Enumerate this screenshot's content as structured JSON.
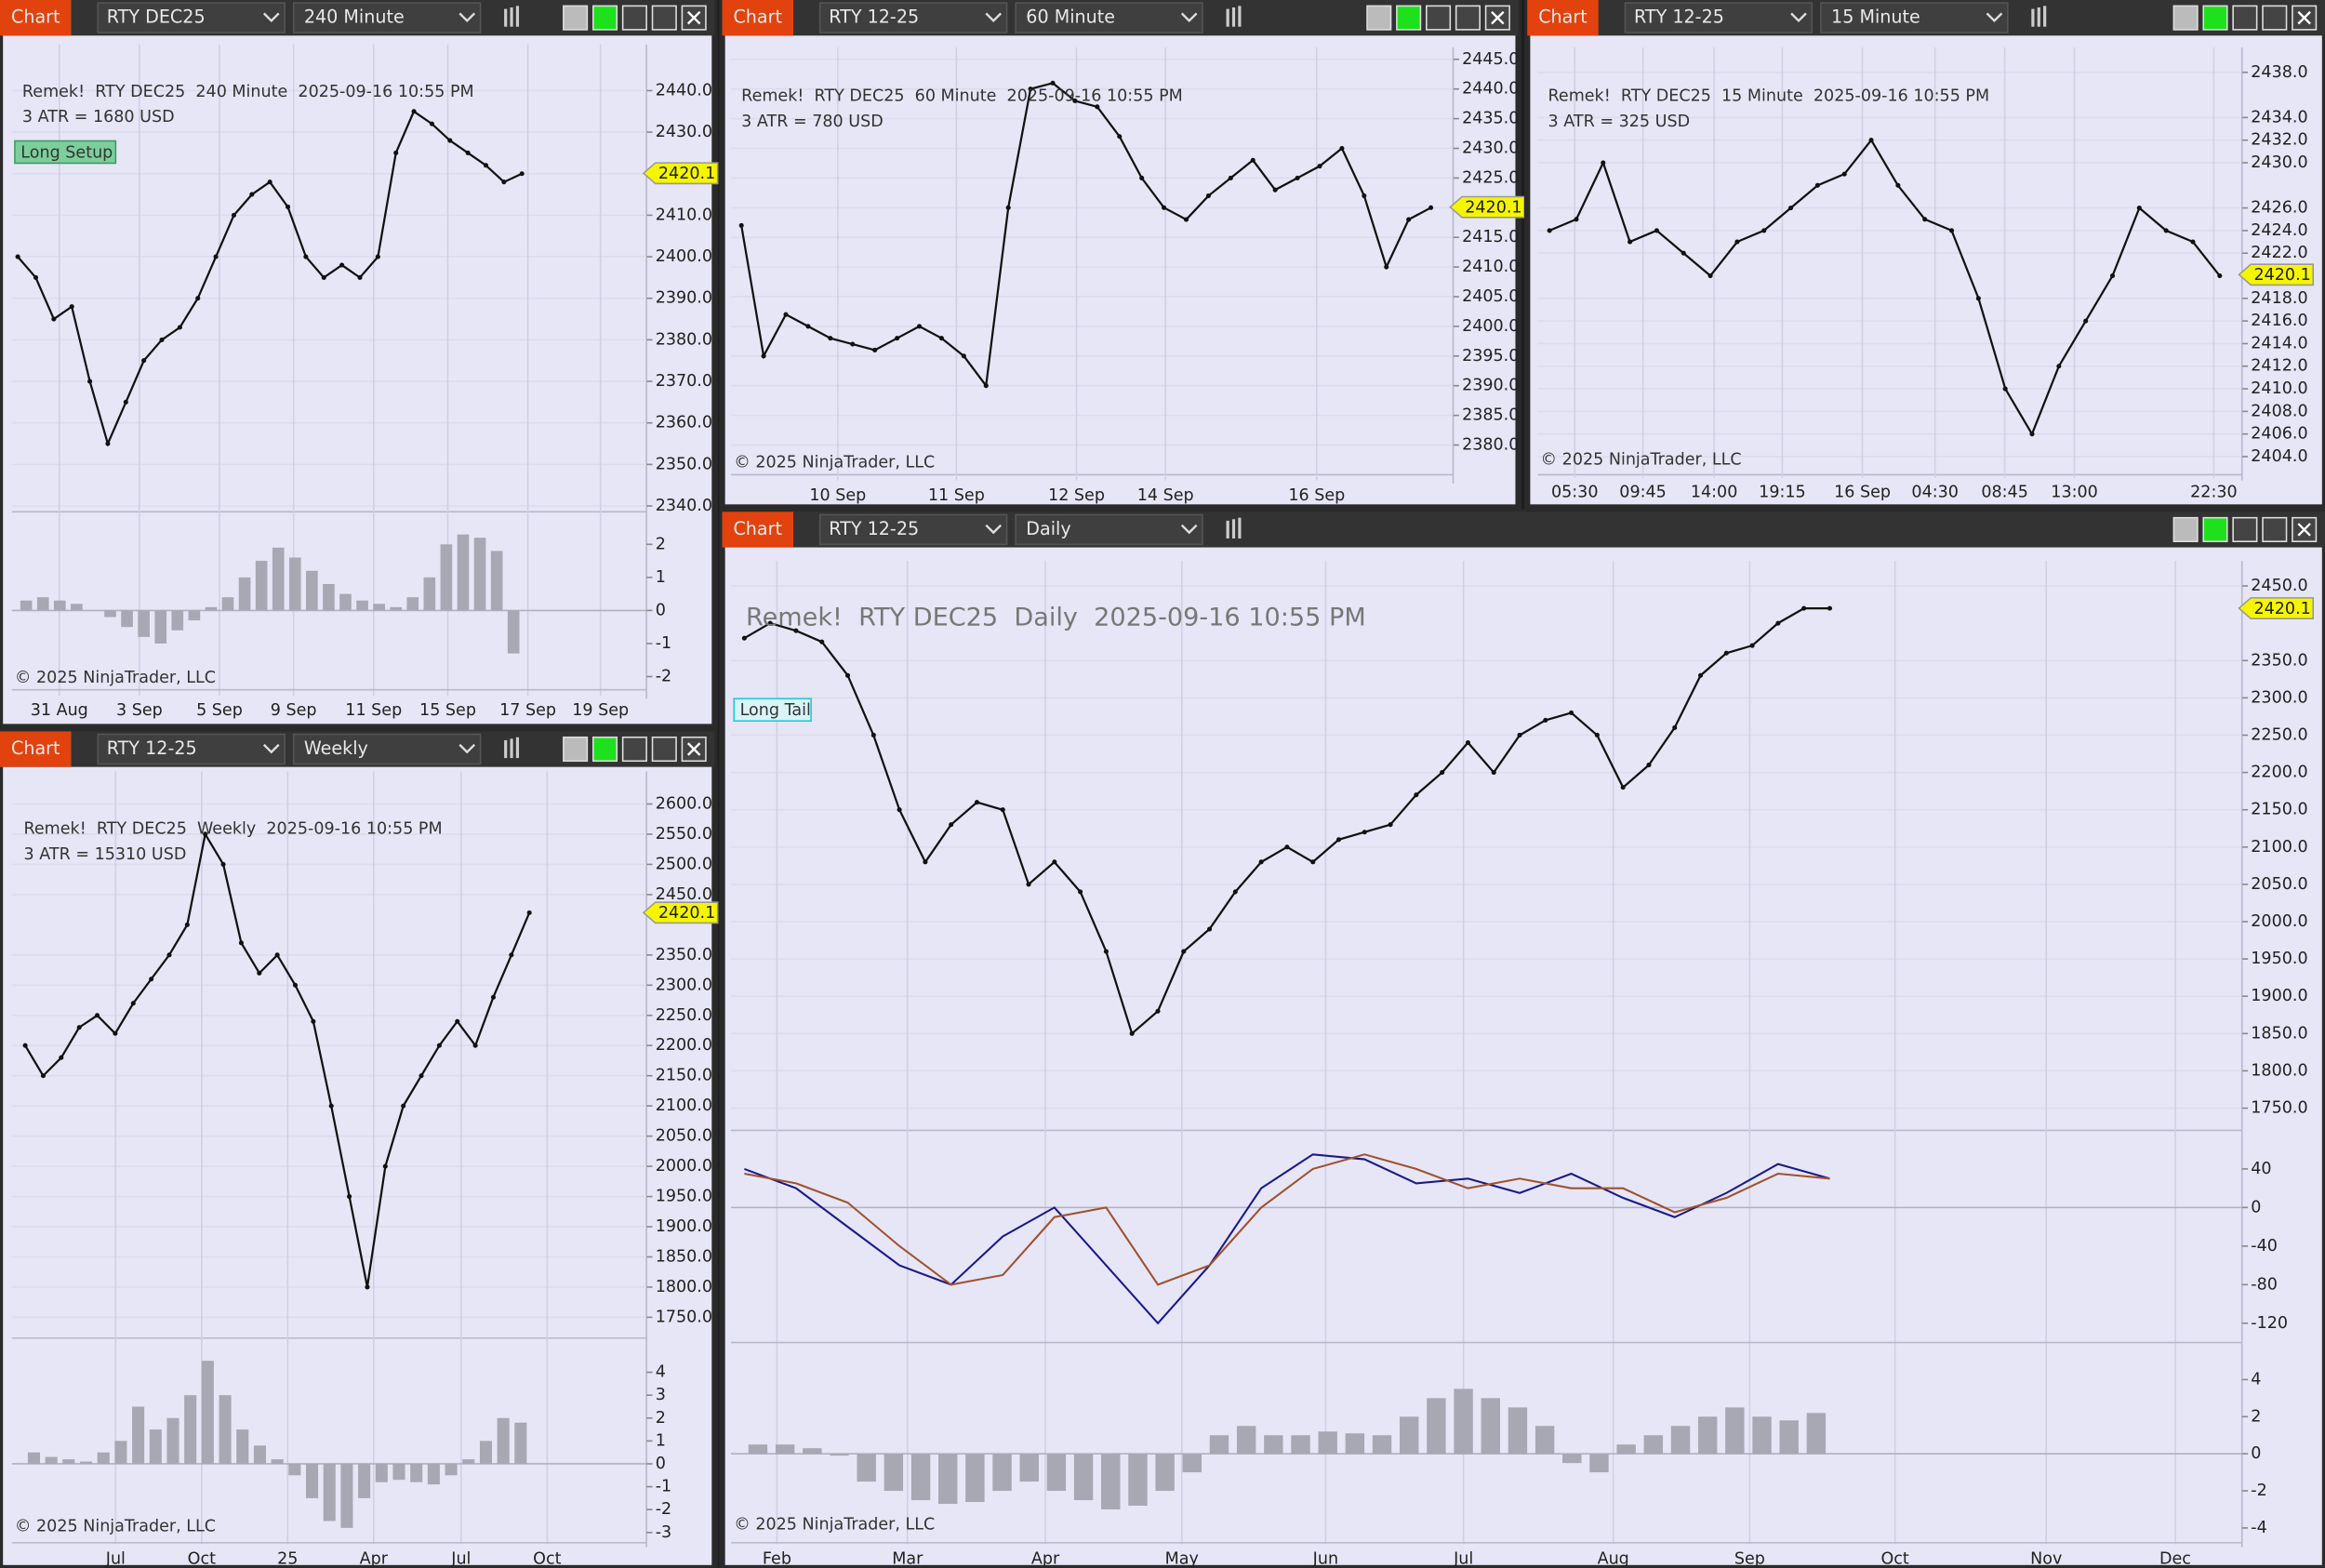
{
  "windows": [
    {
      "tab": "Chart",
      "instrument": "RTY DEC25",
      "interval": "240 Minute"
    },
    {
      "tab": "Chart",
      "instrument": "RTY 12-25",
      "interval": "60 Minute"
    },
    {
      "tab": "Chart",
      "instrument": "RTY 12-25",
      "interval": "15 Minute"
    },
    {
      "tab": "Chart",
      "instrument": "RTY 12-25",
      "interval": "Weekly"
    },
    {
      "tab": "Chart",
      "instrument": "RTY 12-25",
      "interval": "Daily"
    }
  ],
  "chart_data": [
    {
      "type": "line",
      "info": [
        "Remek!  RTY DEC25  240 Minute  2025-09-16 10:55 PM",
        "3 ATR = 1680 USD"
      ],
      "badge": "Long Setup",
      "price_label": 2420.1,
      "copyright": "© 2025 NinjaTrader, LLC",
      "x_labels": [
        "31 Aug",
        "3 Sep",
        "5 Sep",
        "9 Sep",
        "11 Sep",
        "15 Sep",
        "17 Sep",
        "19 Sep"
      ],
      "values": [
        2400,
        2395,
        2385,
        2388,
        2370,
        2355,
        2365,
        2375,
        2380,
        2383,
        2390,
        2400,
        2410,
        2415,
        2418,
        2412,
        2400,
        2395,
        2398,
        2395,
        2400,
        2425,
        2435,
        2432,
        2428,
        2425,
        2422,
        2418,
        2420
      ],
      "color": "#111111",
      "ylim": [
        2338.6,
        2451.1
      ],
      "yticks": [
        {
          "value": 2440,
          "label": "2440.0"
        },
        {
          "value": 2430,
          "label": "2430.0"
        },
        {
          "value": 2420,
          "label": "2420.0"
        },
        {
          "value": 2410,
          "label": "2410.0"
        },
        {
          "value": 2400,
          "label": "2400.0"
        },
        {
          "value": 2390,
          "label": "2390.0"
        },
        {
          "value": 2380,
          "label": "2380.0"
        },
        {
          "value": 2370,
          "label": "2370.0"
        },
        {
          "value": 2360,
          "label": "2360.0"
        },
        {
          "value": 2350,
          "label": "2350.0"
        },
        {
          "value": 2340,
          "label": "2340.0"
        }
      ],
      "panes": [
        {
          "type": "bar",
          "color": "#a8a8b4",
          "ylim": [
            -2.4,
            2.85
          ],
          "yticks": [
            2,
            1,
            0,
            -1,
            -2
          ],
          "values": [
            0.3,
            0.4,
            0.3,
            0.2,
            0,
            -0.2,
            -0.5,
            -0.8,
            -1.0,
            -0.6,
            -0.3,
            0.1,
            0.4,
            1.0,
            1.5,
            1.9,
            1.6,
            1.2,
            0.8,
            0.5,
            0.3,
            0.2,
            0.1,
            0.4,
            1.0,
            2.0,
            2.3,
            2.2,
            1.8,
            -1.3
          ]
        }
      ]
    },
    {
      "type": "line",
      "info": [
        "Remek!  RTY DEC25  60 Minute  2025-09-16 10:55 PM",
        "3 ATR = 780 USD"
      ],
      "price_label": 2420.1,
      "copyright": "© 2025 NinjaTrader, LLC",
      "x_labels": [
        "10 Sep",
        "11 Sep",
        "12 Sep",
        "14 Sep",
        "16 Sep"
      ],
      "values": [
        2417,
        2395,
        2402,
        2400,
        2398,
        2397,
        2396,
        2398,
        2400,
        2398,
        2395,
        2390,
        2420,
        2440,
        2441,
        2438,
        2437,
        2432,
        2425,
        2420,
        2418,
        2422,
        2425,
        2428,
        2423,
        2425,
        2427,
        2430,
        2422,
        2410,
        2418,
        2420
      ],
      "color": "#111111",
      "ylim": [
        2375,
        2447
      ],
      "yticks": [
        {
          "value": 2445,
          "label": "2445.0"
        },
        {
          "value": 2440,
          "label": "2440.0"
        },
        {
          "value": 2435,
          "label": "2435.0"
        },
        {
          "value": 2430,
          "label": "2430.0"
        },
        {
          "value": 2425,
          "label": "2425.0"
        },
        {
          "value": 2420,
          "label": "2420.0"
        },
        {
          "value": 2415,
          "label": "2415.0"
        },
        {
          "value": 2410,
          "label": "2410.0"
        },
        {
          "value": 2405,
          "label": "2405.0"
        },
        {
          "value": 2400,
          "label": "2400.0"
        },
        {
          "value": 2395,
          "label": "2395.0"
        },
        {
          "value": 2390,
          "label": "2390.0"
        },
        {
          "value": 2385,
          "label": "2385.0"
        },
        {
          "value": 2380,
          "label": "2380.0"
        }
      ],
      "panes": []
    },
    {
      "type": "line",
      "info": [
        "Remek!  RTY DEC25  15 Minute  2025-09-16 10:55 PM",
        "3 ATR = 325 USD"
      ],
      "price_label": 2420.1,
      "copyright": "© 2025 NinjaTrader, LLC",
      "x_labels": [
        "05:30",
        "09:45",
        "14:00",
        "19:15",
        "16 Sep",
        "04:30",
        "08:45",
        "13:00",
        "22:30"
      ],
      "values": [
        2424,
        2425,
        2430,
        2423,
        2424,
        2422,
        2420,
        2423,
        2424,
        2426,
        2428,
        2429,
        2432,
        2428,
        2425,
        2424,
        2418,
        2410,
        2406,
        2412,
        2416,
        2420,
        2426,
        2424,
        2423,
        2420
      ],
      "color": "#111111",
      "ylim": [
        2402.4,
        2440.2
      ],
      "yticks": [
        {
          "value": 2438,
          "label": "2438.0"
        },
        {
          "value": 2434,
          "label": "2434.0"
        },
        {
          "value": 2432,
          "label": "2432.0"
        },
        {
          "value": 2430,
          "label": "2430.0"
        },
        {
          "value": 2426,
          "label": "2426.0"
        },
        {
          "value": 2424,
          "label": "2424.0"
        },
        {
          "value": 2422,
          "label": "2422.0"
        },
        {
          "value": 2418,
          "label": "2418.0"
        },
        {
          "value": 2416,
          "label": "2416.0"
        },
        {
          "value": 2414,
          "label": "2414.0"
        },
        {
          "value": 2412,
          "label": "2412.0"
        },
        {
          "value": 2410,
          "label": "2410.0"
        },
        {
          "value": 2408,
          "label": "2408.0"
        },
        {
          "value": 2406,
          "label": "2406.0"
        },
        {
          "value": 2404,
          "label": "2404.0"
        }
      ],
      "panes": []
    },
    {
      "type": "line",
      "info": [
        "Remek!  RTY DEC25  Weekly  2025-09-16 10:55 PM",
        "3 ATR = 15310 USD"
      ],
      "price_label": 2420.1,
      "copyright": "© 2025 NinjaTrader, LLC",
      "x_labels": [
        "Jul",
        "Oct",
        "25",
        "Apr",
        "Jul",
        "Oct"
      ],
      "values": [
        2200,
        2150,
        2180,
        2230,
        2250,
        2220,
        2270,
        2310,
        2350,
        2400,
        2550,
        2500,
        2370,
        2320,
        2350,
        2300,
        2240,
        2100,
        1950,
        1800,
        2000,
        2100,
        2150,
        2200,
        2240,
        2200,
        2280,
        2350,
        2420
      ],
      "color": "#111111",
      "ylim": [
        1715.6,
        2654
      ],
      "yticks": [
        {
          "value": 2600,
          "label": "2600.0"
        },
        {
          "value": 2550,
          "label": "2550.0"
        },
        {
          "value": 2500,
          "label": "2500.0"
        },
        {
          "value": 2450,
          "label": "2450.0"
        },
        {
          "value": 2350,
          "label": "2350.0"
        },
        {
          "value": 2300,
          "label": "2300.0"
        },
        {
          "value": 2250,
          "label": "2250.0"
        },
        {
          "value": 2200,
          "label": "2200.0"
        },
        {
          "value": 2150,
          "label": "2150.0"
        },
        {
          "value": 2100,
          "label": "2100.0"
        },
        {
          "value": 2050,
          "label": "2050.0"
        },
        {
          "value": 2000,
          "label": "2000.0"
        },
        {
          "value": 1950,
          "label": "1950.0"
        },
        {
          "value": 1900,
          "label": "1900.0"
        },
        {
          "value": 1850,
          "label": "1850.0"
        },
        {
          "value": 1800,
          "label": "1800.0"
        },
        {
          "value": 1750,
          "label": "1750.0"
        }
      ],
      "panes": [
        {
          "type": "bar",
          "color": "#a8a8b4",
          "ylim": [
            -3.45,
            5.3
          ],
          "yticks": [
            4,
            3,
            2,
            1,
            0,
            -1,
            -2,
            -3
          ],
          "values": [
            0.5,
            0.3,
            0.2,
            0.1,
            0.5,
            1,
            2.5,
            1.5,
            2,
            3,
            4.5,
            3,
            1.5,
            0.8,
            0.2,
            -0.5,
            -1.5,
            -2.5,
            -2.8,
            -1.5,
            -0.8,
            -0.7,
            -0.8,
            -0.9,
            -0.5,
            0.2,
            1,
            2,
            1.8
          ]
        }
      ]
    },
    {
      "type": "line",
      "info": [
        "Remek!  RTY DEC25  Daily  2025-09-16 10:55 PM"
      ],
      "badge": "Long Tail",
      "price_label": 2420.1,
      "copyright": "© 2025 NinjaTrader, LLC",
      "x_labels": [
        "Feb",
        "Mar",
        "Apr",
        "May",
        "Jun",
        "Jul",
        "Aug",
        "Sep",
        "Oct",
        "Nov",
        "Dec"
      ],
      "values": [
        2380,
        2400,
        2390,
        2375,
        2330,
        2250,
        2150,
        2080,
        2130,
        2160,
        2150,
        2050,
        2080,
        2040,
        1960,
        1850,
        1880,
        1960,
        1990,
        2040,
        2080,
        2100,
        2080,
        2110,
        2120,
        2130,
        2170,
        2200,
        2240,
        2200,
        2250,
        2270,
        2280,
        2250,
        2180,
        2210,
        2260,
        2330,
        2360,
        2370,
        2400,
        2420,
        2420
      ],
      "color": "#111111",
      "ylim": [
        1720.2,
        2483.8
      ],
      "yticks": [
        {
          "value": 2450,
          "label": "2450.0"
        },
        {
          "value": 2350,
          "label": "2350.0"
        },
        {
          "value": 2300,
          "label": "2300.0"
        },
        {
          "value": 2250,
          "label": "2250.0"
        },
        {
          "value": 2200,
          "label": "2200.0"
        },
        {
          "value": 2150,
          "label": "2150.0"
        },
        {
          "value": 2100,
          "label": "2100.0"
        },
        {
          "value": 2050,
          "label": "2050.0"
        },
        {
          "value": 2000,
          "label": "2000.0"
        },
        {
          "value": 1950,
          "label": "1950.0"
        },
        {
          "value": 1900,
          "label": "1900.0"
        },
        {
          "value": 1850,
          "label": "1850.0"
        },
        {
          "value": 1800,
          "label": "1800.0"
        },
        {
          "value": 1750,
          "label": "1750.0"
        }
      ],
      "panes": [
        {
          "type": "line",
          "ylim": [
            -140,
            76.9
          ],
          "yticks": [
            40,
            0,
            -40,
            -80,
            -120
          ],
          "series": [
            {
              "color": "#1a1a8a",
              "values": [
                40,
                20,
                -20,
                -60,
                -80,
                -30,
                0,
                -60,
                -120,
                -60,
                20,
                55,
                50,
                25,
                30,
                15,
                35,
                10,
                -10,
                15,
                45,
                30
              ]
            },
            {
              "color": "#a0522d",
              "values": [
                35,
                25,
                5,
                -40,
                -80,
                -70,
                -10,
                0,
                -80,
                -60,
                0,
                40,
                55,
                40,
                20,
                30,
                20,
                20,
                -5,
                10,
                35,
                30
              ]
            }
          ]
        },
        {
          "type": "bar",
          "color": "#a8a8b4",
          "ylim": [
            -4.8,
            5.76
          ],
          "yticks": [
            4,
            2,
            0,
            -2,
            -4
          ],
          "values": [
            0.5,
            0.5,
            0.3,
            -0.1,
            -1.5,
            -2,
            -2.5,
            -2.7,
            -2.6,
            -2,
            -1.5,
            -2,
            -2.5,
            -3,
            -2.8,
            -2,
            -1,
            1,
            1.5,
            1,
            1,
            1.2,
            1.1,
            1,
            2,
            3,
            3.5,
            3,
            2.5,
            1.5,
            -0.5,
            -1,
            0.5,
            1,
            1.5,
            2,
            2.5,
            2,
            1.8,
            2.2
          ]
        }
      ]
    }
  ]
}
